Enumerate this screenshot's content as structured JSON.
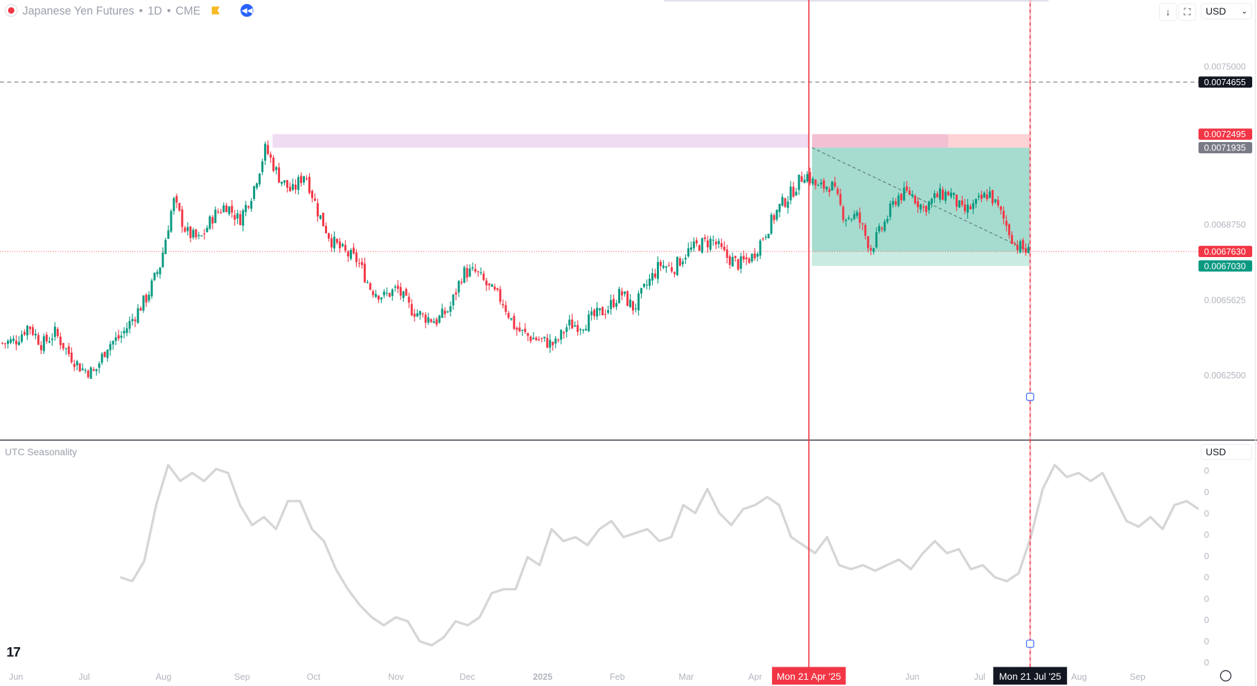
{
  "header": {
    "symbol": "Japanese Yen Futures",
    "interval": "1D",
    "exchange": "CME",
    "separator": "•"
  },
  "toolbar": {
    "download_icon": "arrow-down-icon",
    "fullscreen_icon": "fullscreen-icon",
    "currency": "USD",
    "currency_sub": "USD"
  },
  "colors": {
    "up": "#089981",
    "down": "#f23645",
    "crosshair": "#f23645",
    "seasonality": "#d6d6d6"
  },
  "price_axis": {
    "ticks": [
      "0.0075000",
      "0.0068750",
      "0.0065625",
      "0.0062500"
    ],
    "labels": [
      {
        "text": "0.0074655",
        "bg": "#131722",
        "price": 0.0074655
      },
      {
        "text": "0.0072495",
        "bg": "#f23645",
        "price": 0.0072495
      },
      {
        "text": "0.0071935",
        "bg": "#787b86",
        "price": 0.0071935
      },
      {
        "text": "0.0067630",
        "bg": "#f23645",
        "price": 0.006763
      },
      {
        "text": "0.0067030",
        "bg": "#089981",
        "price": 0.006703
      }
    ]
  },
  "position_tool": {
    "stop": 0.0072495,
    "entry": 0.0071935,
    "current": 0.006763,
    "target": 0.006703
  },
  "horizontal_line": 0.0074655,
  "time_axis": {
    "labels": [
      "Jun",
      "Jul",
      "Aug",
      "Sep",
      "Oct",
      "Nov",
      "Dec",
      "2025",
      "Feb",
      "Mar",
      "Apr",
      "Jun",
      "Jul",
      "Aug",
      "Sep"
    ],
    "crosshair_labels": [
      "Mon 21 Apr '25",
      "Mon 21 Jul '25"
    ]
  },
  "indicator": {
    "title": "UTC Seasonality",
    "ticks": [
      "0",
      "0",
      "0",
      "0",
      "0",
      "0",
      "0",
      "0",
      "0",
      "0"
    ]
  },
  "chart_data": {
    "type": "candlestick",
    "price_path": [
      0.006383,
      0.006393,
      0.006459,
      0.006376,
      0.006426,
      0.006343,
      0.006277,
      0.00626,
      0.006376,
      0.00641,
      0.006493,
      0.006576,
      0.006709,
      0.006975,
      0.006842,
      0.006809,
      0.006908,
      0.006958,
      0.006892,
      0.007008,
      0.007191,
      0.007074,
      0.007008,
      0.007091,
      0.006925,
      0.006809,
      0.006759,
      0.006725,
      0.006609,
      0.006576,
      0.006609,
      0.006526,
      0.006493,
      0.006476,
      0.006526,
      0.006676,
      0.006676,
      0.006609,
      0.006559,
      0.006443,
      0.00641,
      0.006393,
      0.006376,
      0.006459,
      0.006459,
      0.006493,
      0.006526,
      0.006592,
      0.006526,
      0.006626,
      0.006709,
      0.006692,
      0.006759,
      0.006792,
      0.006809,
      0.006742,
      0.006709,
      0.006742,
      0.006842,
      0.006942,
      0.007008,
      0.007091,
      0.007025,
      0.007041,
      0.006908,
      0.006908,
      0.006775,
      0.006875,
      0.006991,
      0.007008,
      0.006942,
      0.006991,
      0.007008,
      0.006925,
      0.006958,
      0.007008,
      0.006908,
      0.006792,
      0.006759
    ],
    "seasonality": [
      90,
      85,
      110,
      180,
      230,
      210,
      220,
      210,
      225,
      220,
      180,
      155,
      165,
      150,
      185,
      185,
      150,
      135,
      100,
      75,
      55,
      40,
      30,
      40,
      35,
      10,
      5,
      15,
      35,
      30,
      40,
      70,
      75,
      75,
      115,
      105,
      150,
      135,
      140,
      130,
      150,
      160,
      140,
      145,
      150,
      135,
      140,
      180,
      170,
      200,
      170,
      155,
      175,
      180,
      190,
      180,
      140,
      130,
      120,
      140,
      105,
      100,
      105,
      98,
      105,
      112,
      100,
      120,
      135,
      120,
      125,
      100,
      105,
      90,
      85,
      95,
      140,
      200,
      230,
      215,
      220,
      210,
      220,
      190,
      160,
      153,
      165,
      150,
      180,
      185,
      175
    ],
    "ylim": [
      0.00612,
      0.00768
    ]
  }
}
